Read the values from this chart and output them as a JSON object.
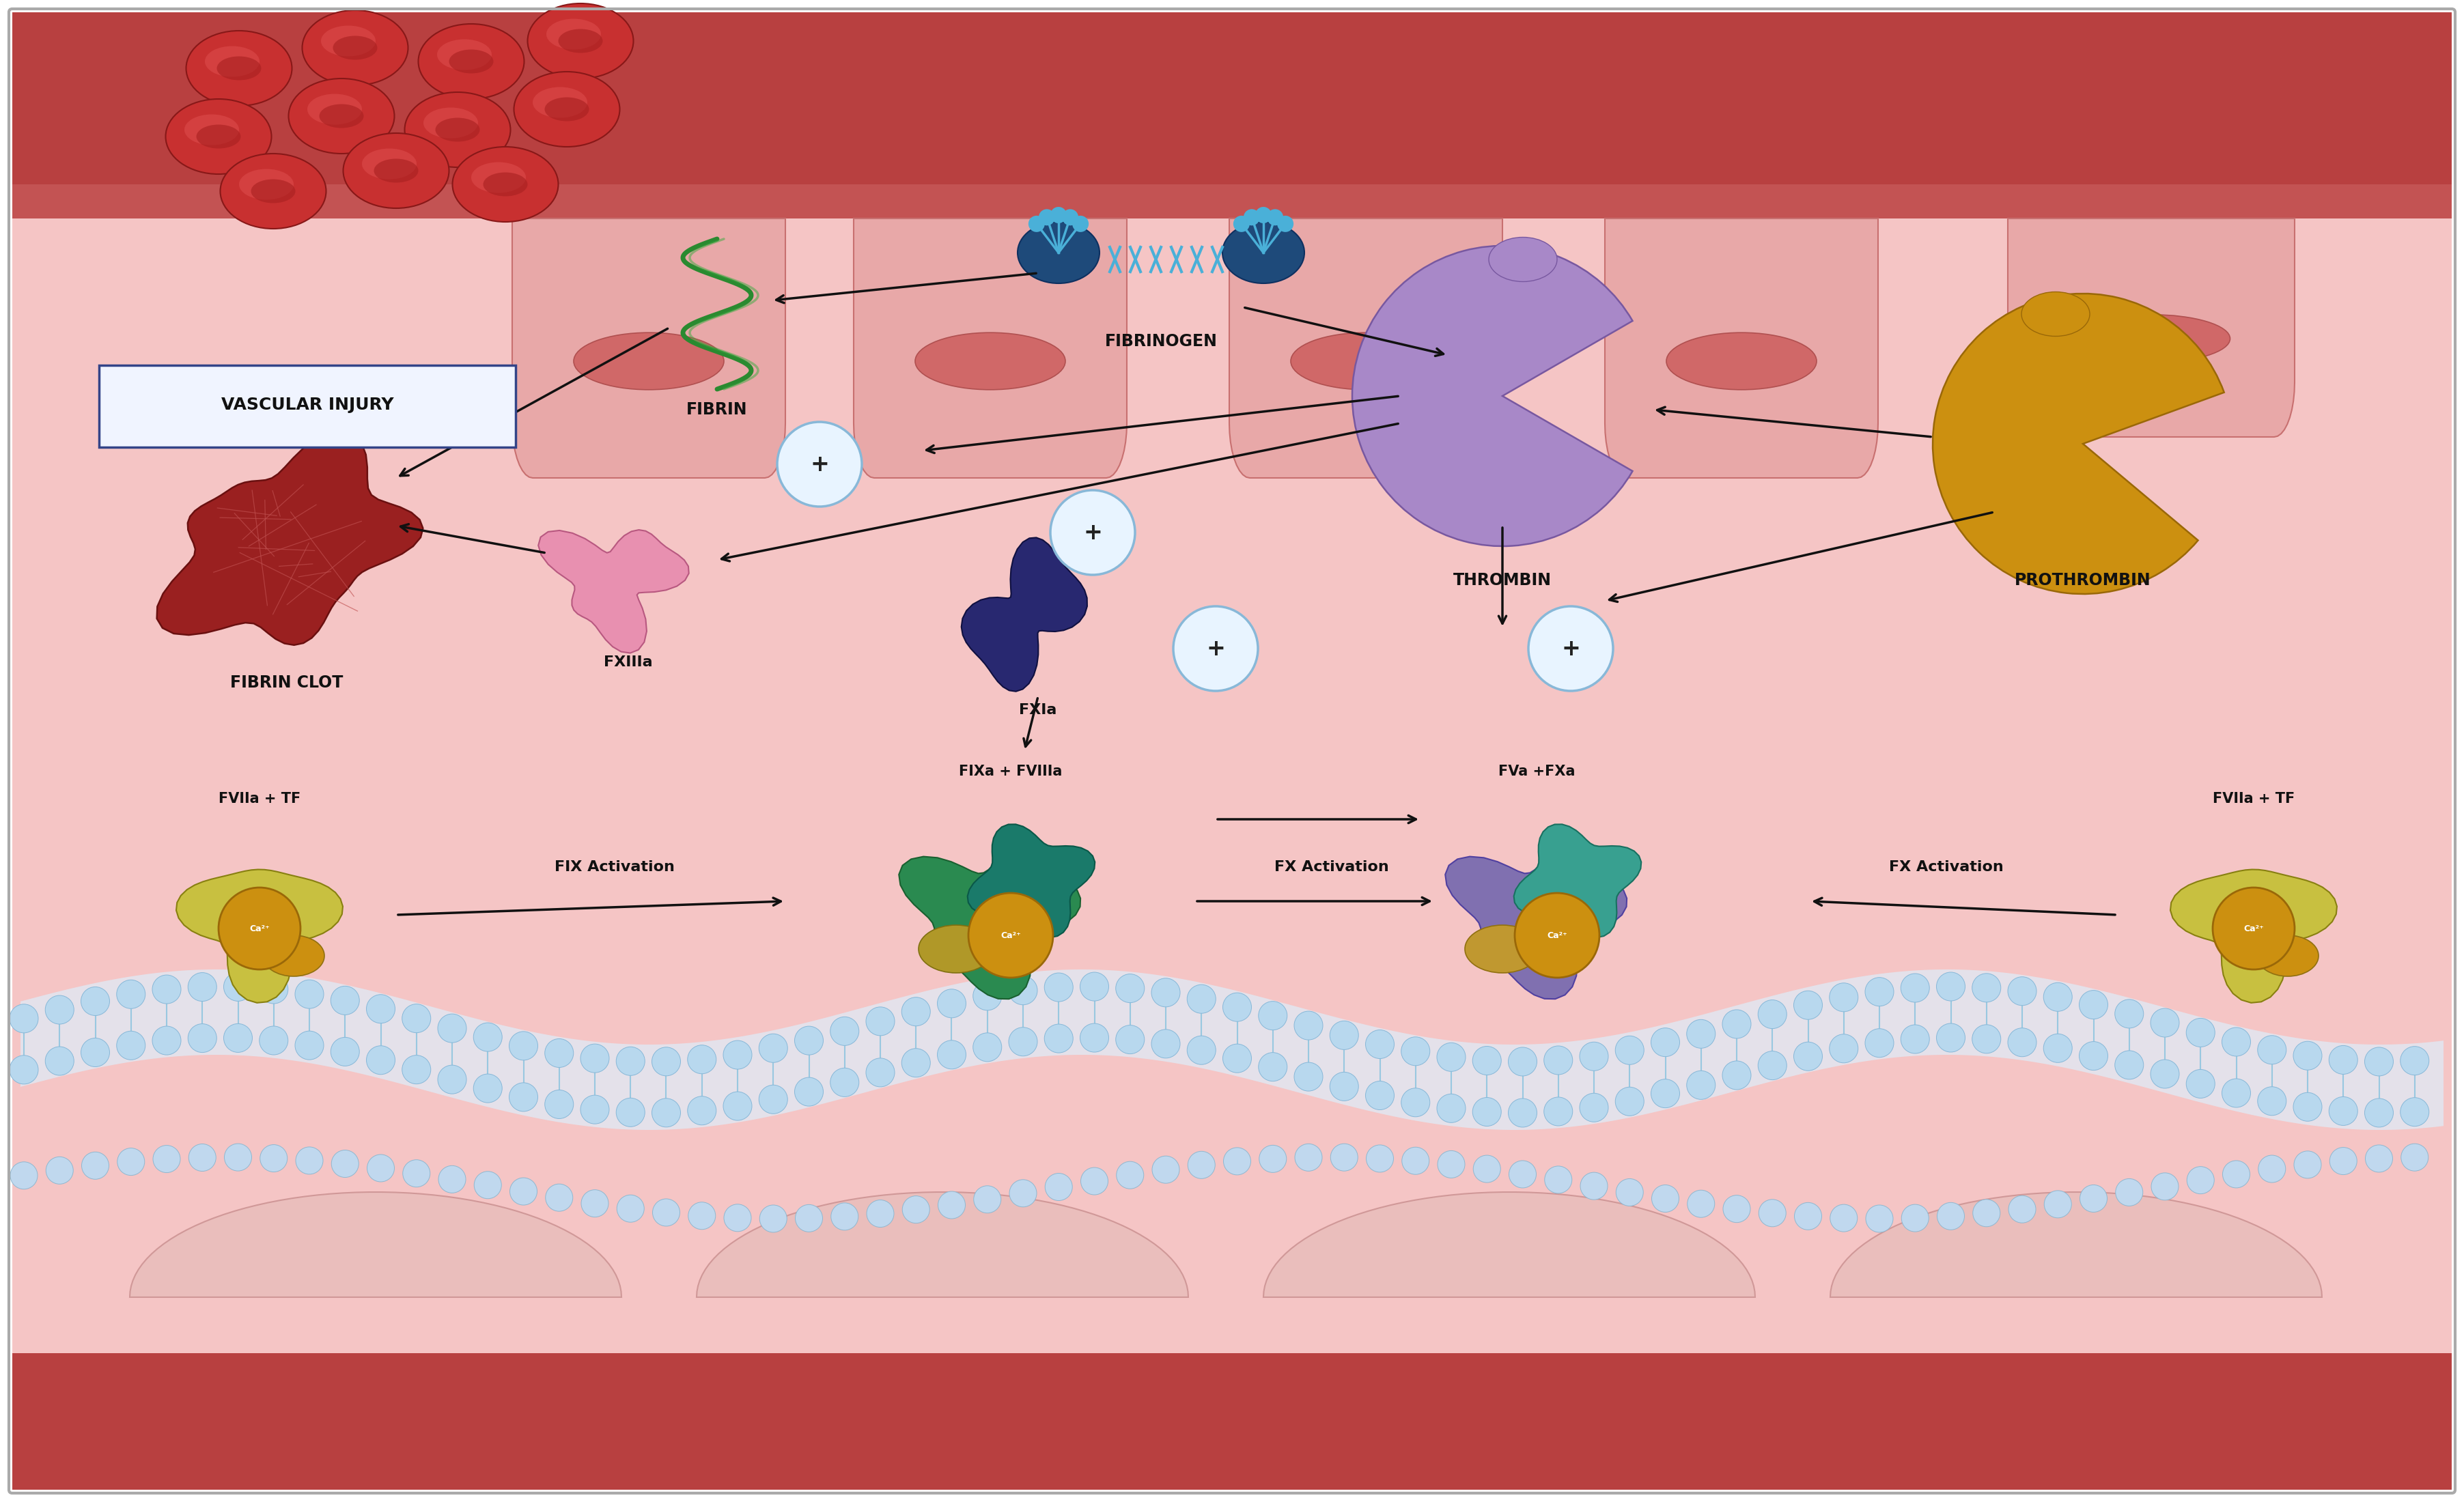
{
  "bg_color": "#ffffff",
  "lumen_bg": "#f5c5c5",
  "wall_color": "#b84040",
  "wall_inner": "#cc6060",
  "endothelium_color": "#e8a8a8",
  "endothelium_edge": "#c87070",
  "nucleus_color": "#d06868",
  "nucleus_edge": "#b05050",
  "membrane_head_color": "#b8d8ee",
  "membrane_head_edge": "#88b8d8",
  "arrow_color": "#111111",
  "plus_fill": "#e8f4ff",
  "plus_edge": "#88b8d8",
  "text_color": "#111111",
  "rbc_fill": "#c83030",
  "rbc_edge": "#881818",
  "rbc_dimple": "#a82020",
  "vascular_injury_label": "VASCULAR INJURY",
  "fibrin_clot_label": "FIBRIN CLOT",
  "fibrin_label": "FIBRIN",
  "fibrinogen_label": "FIBRINOGEN",
  "thrombin_label": "THROMBIN",
  "prothrombin_label": "PROTHROMBIN",
  "fxiiia_label": "FXIIIa",
  "fxia_label": "FXIa",
  "fixa_fviiia_label": "FIXa + FVIIIa",
  "fva_fxa_label": "FVa +FXa",
  "fvii_tf_label": "FVIIa + TF",
  "fix_label": "FIX Activation",
  "fx_label": "FX Activation",
  "ca2_label": "Ca²⁺",
  "fibrin_clot_color": "#9a2020",
  "fibrin_clot_edge": "#6a1010",
  "fibrin_color": "#2a8a30",
  "fibrinogen_blue": "#1e4a7a",
  "fibrinogen_light": "#4ab0d8",
  "thrombin_color": "#a888c8",
  "thrombin_edge": "#7858a0",
  "prothrombin_color": "#cc9010",
  "prothrombin_edge": "#9a6808",
  "fxiiia_color": "#e890b0",
  "fxiiia_edge": "#b85880",
  "fxia_color": "#282870",
  "fxia_edge": "#101040",
  "complex_l_main": "#2a8a50",
  "complex_l_teal": "#1a7a6a",
  "complex_l_gold": "#b09828",
  "complex_r_purple": "#8070b0",
  "complex_r_teal": "#38a090",
  "complex_r_gold": "#c09830",
  "ca2_badge_fill": "#cc9010",
  "ca2_badge_edge": "#9a6808",
  "fvii_tf_fill": "#c8c040",
  "fvii_tf_edge": "#888010",
  "fvii_tf_gold": "#cc9010"
}
